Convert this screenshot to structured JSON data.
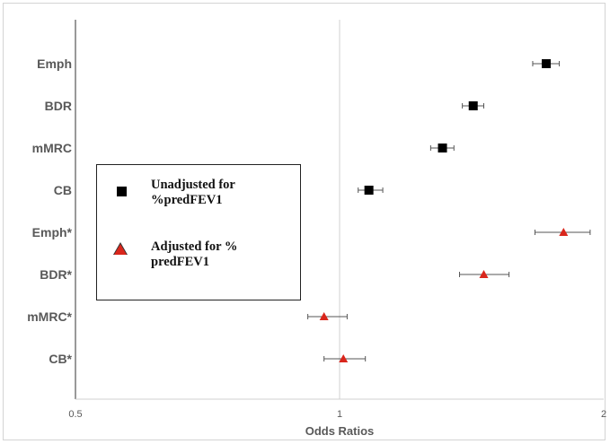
{
  "chart_data": {
    "type": "scatter",
    "title": "",
    "xlabel": "Odds Ratios",
    "ylabel": "",
    "xscale": "log",
    "xlim": [
      0.5,
      2
    ],
    "xticks": [
      "0.5",
      "1",
      "2"
    ],
    "gridlines": "vertical at 1",
    "legend_position": "left-center",
    "categories": [
      "Emph",
      "BDR",
      "mMRC",
      "CB",
      "Emph*",
      "BDR*",
      "mMRC*",
      "CB*"
    ],
    "series": [
      {
        "name": "Unadjusted for %predFEV1",
        "marker": "square",
        "color": "#000000",
        "points": [
          {
            "category": "Emph",
            "or": 1.72,
            "lower": 1.66,
            "upper": 1.78
          },
          {
            "category": "BDR",
            "or": 1.42,
            "lower": 1.38,
            "upper": 1.46
          },
          {
            "category": "mMRC",
            "or": 1.31,
            "lower": 1.27,
            "upper": 1.35
          },
          {
            "category": "CB",
            "or": 1.08,
            "lower": 1.05,
            "upper": 1.12
          }
        ]
      },
      {
        "name": "Adjusted for % predFEV1",
        "marker": "triangle",
        "color": "#d9261c",
        "points": [
          {
            "category": "Emph*",
            "or": 1.8,
            "lower": 1.67,
            "upper": 1.93
          },
          {
            "category": "BDR*",
            "or": 1.46,
            "lower": 1.37,
            "upper": 1.56
          },
          {
            "category": "mMRC*",
            "or": 0.96,
            "lower": 0.92,
            "upper": 1.02
          },
          {
            "category": "CB*",
            "or": 1.01,
            "lower": 0.96,
            "upper": 1.07
          }
        ]
      }
    ]
  },
  "legend": {
    "unadjusted_label": "Unadjusted for\n%predFEV1",
    "adjusted_label": "Adjusted for %\npredFEV1"
  }
}
